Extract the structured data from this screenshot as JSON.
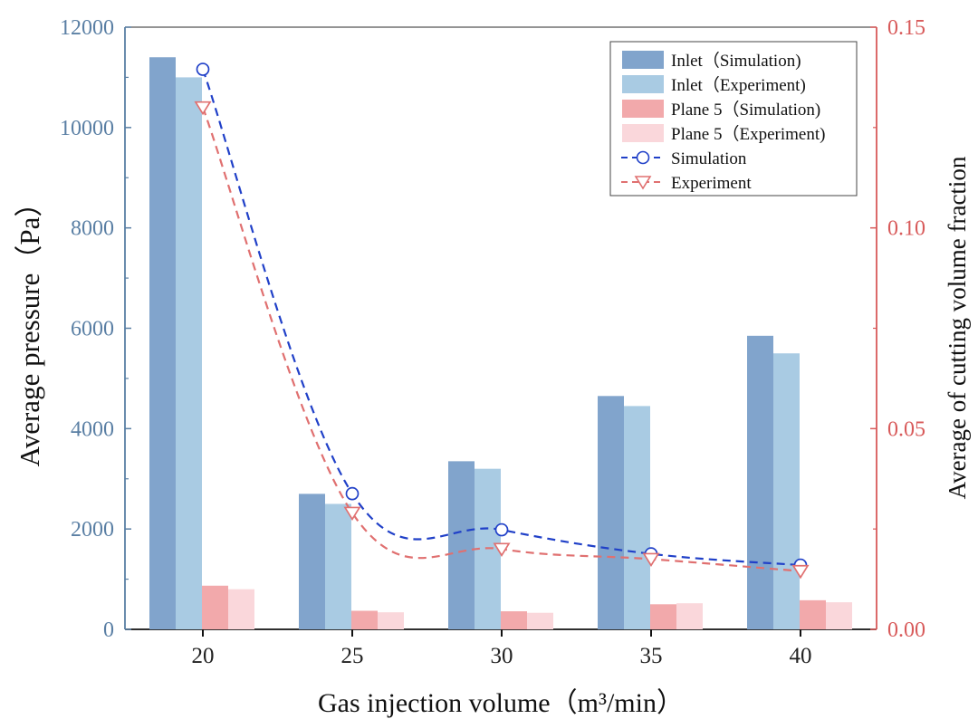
{
  "colors": {
    "inlet_sim": "#81A4CC",
    "inlet_exp": "#A9CBE3",
    "plane_sim": "#F2A9AB",
    "plane_exp": "#FAD7DB",
    "line_sim": "#2040C8",
    "line_exp": "#E07070",
    "left_axis": "#5A7FA4",
    "right_axis": "#D85A5A"
  },
  "chart_data": {
    "type": "bar",
    "categories": [
      "20",
      "25",
      "30",
      "35",
      "40"
    ],
    "xlabel": "Gas injection volume（m³/min）",
    "ylabel": "Average pressure（Pa）",
    "y2label": "Average of cutting volume fraction",
    "ylim": [
      0,
      12000
    ],
    "y2lim": [
      0,
      0.15
    ],
    "yticks": [
      "0",
      "2000",
      "4000",
      "6000",
      "8000",
      "10000",
      "12000"
    ],
    "y2ticks": [
      "0.00",
      "0.05",
      "0.10",
      "0.15"
    ],
    "series": [
      {
        "name": "Inlet（Simulation)",
        "type": "bar",
        "axis": "left",
        "color_key": "inlet_sim",
        "values": [
          11400,
          2700,
          3350,
          4650,
          5850
        ]
      },
      {
        "name": "Inlet（Experiment)",
        "type": "bar",
        "axis": "left",
        "color_key": "inlet_exp",
        "values": [
          11000,
          2500,
          3200,
          4450,
          5500
        ]
      },
      {
        "name": "Plane 5（Simulation)",
        "type": "bar",
        "axis": "left",
        "color_key": "plane_sim",
        "values": [
          870,
          370,
          360,
          500,
          580
        ]
      },
      {
        "name": "Plane 5（Experiment)",
        "type": "bar",
        "axis": "left",
        "color_key": "plane_exp",
        "values": [
          800,
          340,
          330,
          520,
          540
        ]
      },
      {
        "name": "Simulation",
        "type": "line",
        "axis": "right",
        "marker": "circle",
        "color_key": "line_sim",
        "values": [
          0.1395,
          0.0338,
          0.0248,
          0.0188,
          0.016
        ]
      },
      {
        "name": "Experiment",
        "type": "line",
        "axis": "right",
        "marker": "triangle-down",
        "color_key": "line_exp",
        "values": [
          0.13,
          0.029,
          0.02,
          0.0175,
          0.0145
        ]
      }
    ],
    "legend_position": "top-right"
  }
}
